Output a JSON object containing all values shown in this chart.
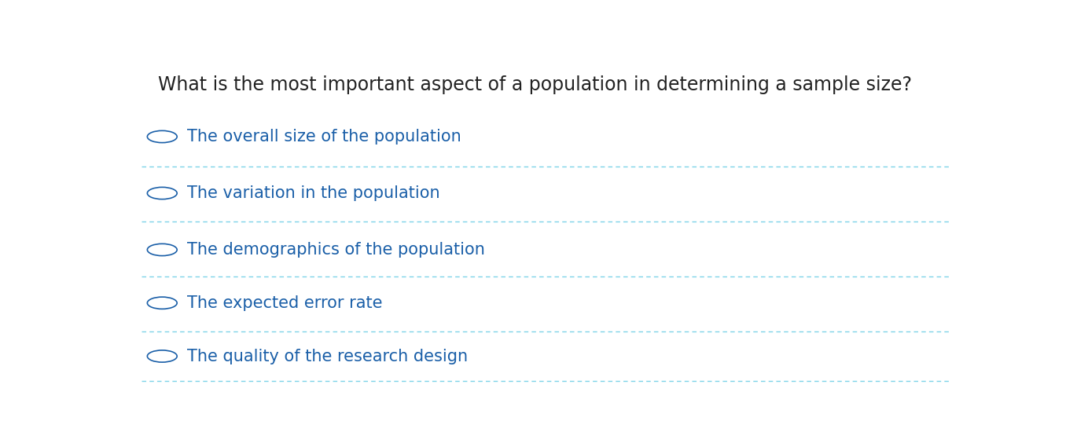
{
  "question": "What is the most important aspect of a population in determining a sample size?",
  "options": [
    "The overall size of the population",
    "The variation in the population",
    "The demographics of the population",
    "The expected error rate",
    "The quality of the research design"
  ],
  "question_color": "#222222",
  "option_color": "#1a5fa8",
  "background_color": "#ffffff",
  "divider_color": "#7dd3e8",
  "question_fontsize": 17,
  "option_fontsize": 15,
  "question_font": "DejaVu Sans",
  "option_font": "DejaVu Sans"
}
